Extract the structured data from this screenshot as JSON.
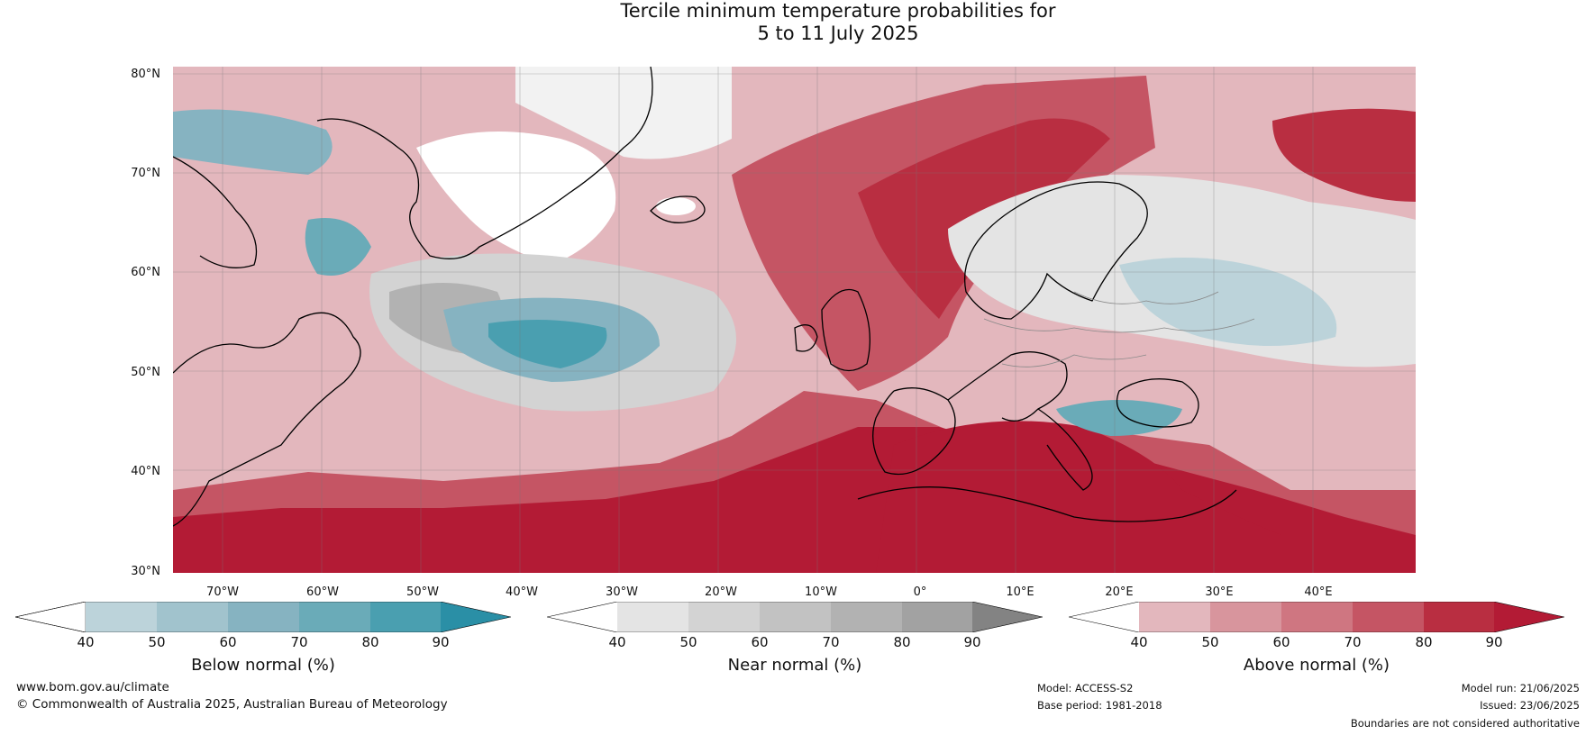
{
  "title_line1": "Tercile minimum temperature probabilities for",
  "title_line2": "5 to 11 July 2025",
  "map": {
    "lat_labels": [
      "80°N",
      "70°N",
      "60°N",
      "50°N",
      "40°N",
      "30°N"
    ],
    "lon_labels": [
      "70°W",
      "60°W",
      "50°W",
      "40°W",
      "30°W",
      "20°W",
      "10°W",
      "0°",
      "10°E",
      "20°E",
      "30°E",
      "40°E"
    ]
  },
  "colorbars": [
    {
      "label": "Below normal (%)",
      "ticks": [
        "40",
        "50",
        "60",
        "70",
        "80",
        "90"
      ],
      "colors": [
        "#ffffff",
        "#bcd3da",
        "#a1c3cd",
        "#86b3c1",
        "#6aabb8",
        "#4a9fb0",
        "#2a8fa6"
      ]
    },
    {
      "label": "Near normal (%)",
      "ticks": [
        "40",
        "50",
        "60",
        "70",
        "80",
        "90"
      ],
      "colors": [
        "#ffffff",
        "#e4e4e4",
        "#d3d3d3",
        "#c2c2c2",
        "#b2b2b2",
        "#a2a2a2",
        "#838383"
      ]
    },
    {
      "label": "Above normal (%)",
      "ticks": [
        "40",
        "50",
        "60",
        "70",
        "80",
        "90"
      ],
      "colors": [
        "#ffffff",
        "#e3b7bd",
        "#d8959d",
        "#cf7681",
        "#c55564",
        "#b92e41",
        "#b31b35"
      ]
    }
  ],
  "footer": {
    "website": "www.bom.gov.au/climate",
    "copyright": "© Commonwealth of Australia 2025, Australian Bureau of Meteorology",
    "model": "Model: ACCESS-S2",
    "base_period": "Base period: 1981-2018",
    "model_run": "Model run: 21/06/2025",
    "issued": "Issued: 23/06/2025",
    "disclaimer": "Boundaries are not considered authoritative"
  }
}
